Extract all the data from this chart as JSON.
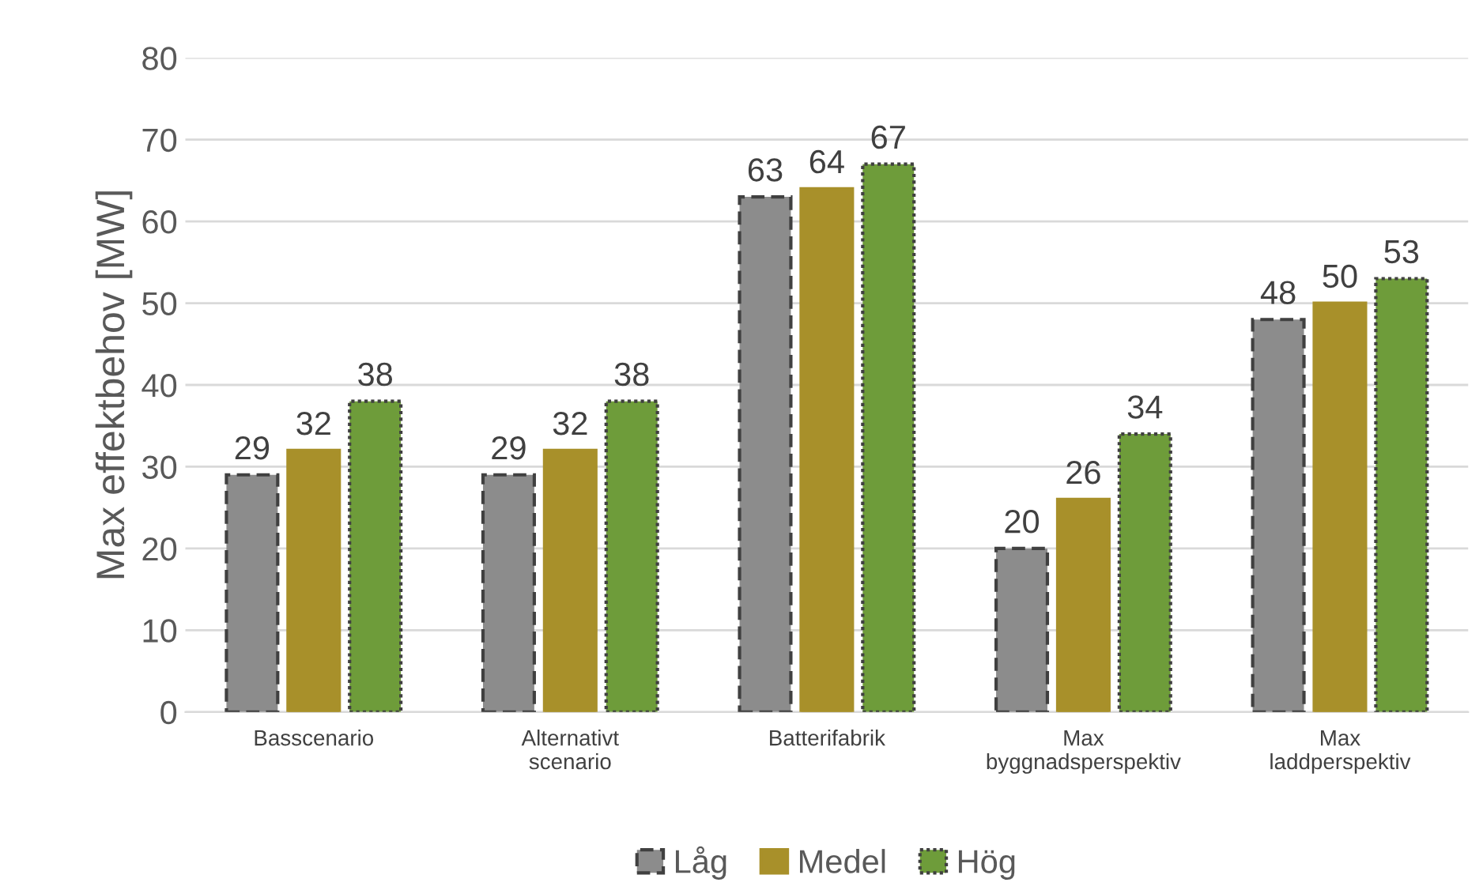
{
  "chart_data": {
    "type": "bar",
    "ylabel": "Max effektbehov [MW]",
    "categories": [
      "Basscenario",
      "Alternativt\nscenario",
      "Batterifabrik",
      "Max\nbyggnadsperspektiv",
      "Max\nladdperspektiv"
    ],
    "series": [
      {
        "name": "Låg",
        "color": "#8c8c8c",
        "line_style": "dashed",
        "values": [
          29,
          29,
          63,
          20,
          48
        ]
      },
      {
        "name": "Medel",
        "color": "#a8902a",
        "line_style": "solid",
        "values": [
          32,
          32,
          64,
          26,
          50
        ]
      },
      {
        "name": "Hög",
        "color": "#6e9c3a",
        "line_style": "dotted",
        "values": [
          38,
          38,
          67,
          34,
          53
        ]
      }
    ],
    "ylim": [
      0,
      80
    ],
    "yticks": [
      0,
      10,
      20,
      30,
      40,
      50,
      60,
      70,
      80
    ],
    "grid": "y",
    "legend": "bottom",
    "data_labels": true
  }
}
